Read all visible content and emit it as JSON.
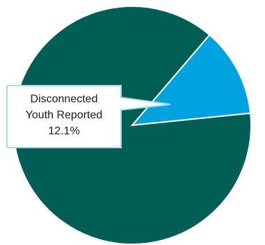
{
  "chart_data": {
    "type": "pie",
    "title": "",
    "slices": [
      {
        "label": "Disconnected Youth Reported",
        "value": 12.1,
        "color": "#00a3e0"
      },
      {
        "label": "",
        "value": 87.9,
        "color": "#005e55"
      }
    ],
    "annotation": {
      "line1": "Disconnected",
      "line2": "Youth Reported",
      "line3": "12.1%"
    },
    "colors": {
      "highlight": "#00a3e0",
      "remainder": "#005e55",
      "callout_border": "#a8dcf2"
    }
  }
}
